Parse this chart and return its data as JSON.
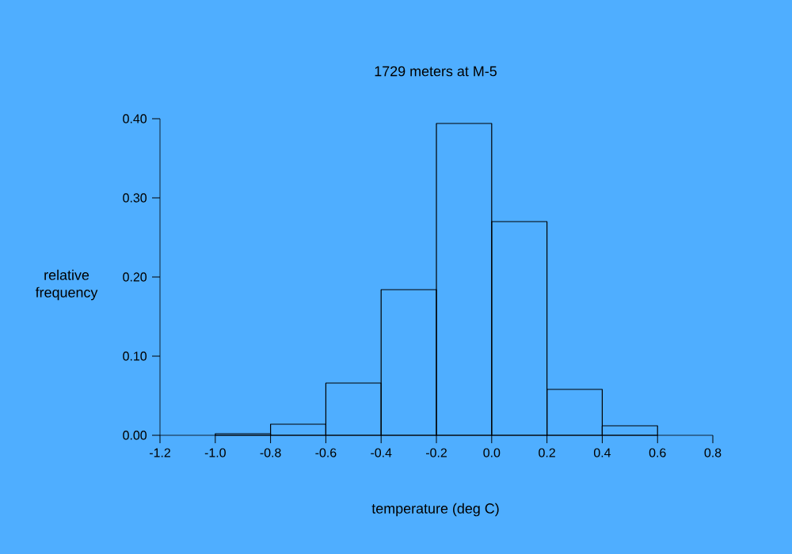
{
  "chart_data": {
    "type": "histogram",
    "title": "1729 meters at M-5",
    "xlabel": "temperature (deg C)",
    "ylabel": "relative frequency",
    "bins": [
      -1.0,
      -0.8,
      -0.6,
      -0.4,
      -0.2,
      0.0,
      0.2,
      0.4,
      0.6
    ],
    "values": [
      0.002,
      0.014,
      0.066,
      0.184,
      0.394,
      0.27,
      0.058,
      0.012
    ],
    "color": "#000000",
    "xlim": [
      -1.2,
      0.8
    ],
    "ylim": [
      0,
      0.4
    ],
    "xticks": [
      -1.2,
      {
        "value": -1.0,
        "label": "-1.0"
      },
      -0.8,
      -0.6,
      -0.4,
      -0.2,
      {
        "value": 0.0,
        "label": "0.0"
      },
      0.2,
      0.4,
      0.6,
      0.8
    ],
    "yticks": [
      {
        "value": 0,
        "label": "0.00"
      },
      {
        "value": 0.1,
        "label": "0.10"
      },
      {
        "value": 0.2,
        "label": "0.20"
      },
      {
        "value": 0.3,
        "label": "0.30"
      },
      {
        "value": 0.4,
        "label": "0.40"
      }
    ],
    "grid": false
  }
}
